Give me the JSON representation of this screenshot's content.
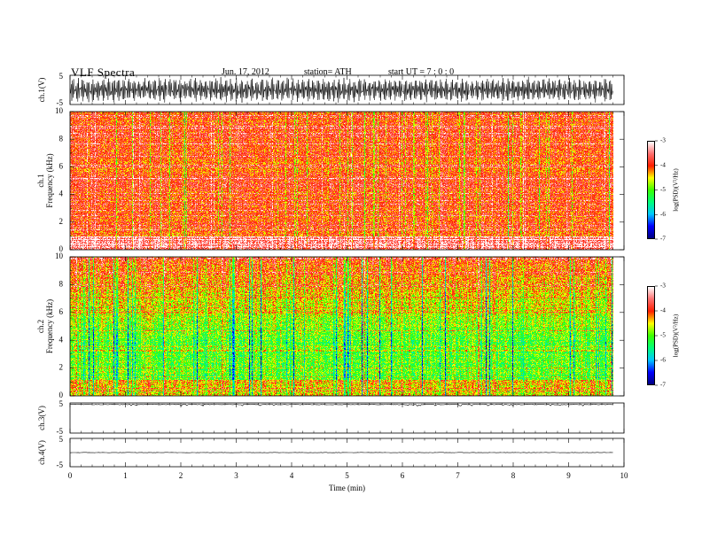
{
  "header": {
    "title": "VLF  Spectra",
    "date": "Jun. 17, 2012",
    "station": "station= ATH",
    "start_ut": "start  UT  =   7  : 0  : 0"
  },
  "chart_data": [
    {
      "type": "line",
      "panel": "ch1-waveform",
      "ylabel": "ch.1(V)",
      "ylim": [
        -5,
        5
      ],
      "yticks": [
        "5",
        "-5"
      ],
      "signal": "dense oscillation spanning roughly -4 to 4 V for the full record",
      "x_end_min": 9.8
    },
    {
      "type": "heatmap",
      "panel": "ch1-spectrogram",
      "ylabel_line1": "ch.1",
      "ylabel_line2": "Frequency  (kHz)",
      "ylim": [
        0,
        10
      ],
      "yticks": [
        "0",
        "2",
        "4",
        "6",
        "8",
        "10"
      ],
      "x_end_min": 9.8,
      "dominant_level": -4.0,
      "colorbar": {
        "label": "log(PSD)(V²/Hz)",
        "ticks": [
          "-3",
          "-4",
          "-5",
          "-6",
          "-7"
        ],
        "range": [
          -7,
          -3
        ]
      }
    },
    {
      "type": "heatmap",
      "panel": "ch2-spectrogram",
      "ylabel_line1": "ch.2",
      "ylabel_line2": "Frequency  (kHz)",
      "ylim": [
        0,
        10
      ],
      "yticks": [
        "0",
        "2",
        "4",
        "6",
        "8",
        "10"
      ],
      "x_end_min": 9.8,
      "dominant_level": -5.0,
      "colorbar": {
        "label": "log(PSD)(V²/Hz)",
        "ticks": [
          "-3",
          "-4",
          "-5",
          "-6",
          "-7"
        ],
        "range": [
          -7,
          -3
        ]
      }
    },
    {
      "type": "line",
      "panel": "ch3-waveform",
      "ylabel": "ch.3(V)",
      "ylim": [
        -5,
        5
      ],
      "yticks": [
        "5",
        "-5"
      ],
      "signal_level": 4.5,
      "x_end_min": 9.8
    },
    {
      "type": "line",
      "panel": "ch4-waveform",
      "ylabel": "ch.4(V)",
      "ylim": [
        -5,
        5
      ],
      "yticks": [
        "5",
        "-5"
      ],
      "signal_level": 0,
      "x_end_min": 9.8
    }
  ],
  "xaxis": {
    "label": "Time  (min)",
    "range": [
      0,
      10
    ],
    "ticks": [
      "0",
      "1",
      "2",
      "3",
      "4",
      "5",
      "6",
      "7",
      "8",
      "9",
      "10"
    ]
  },
  "colormap": [
    "#000080",
    "#0000ff",
    "#00ffff",
    "#00ff00",
    "#ffff00",
    "#ff0000",
    "#ffffff"
  ]
}
